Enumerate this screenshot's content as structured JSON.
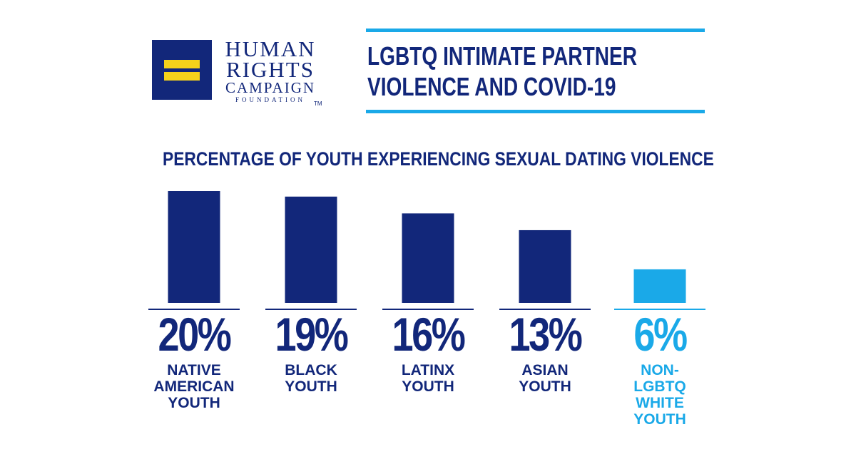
{
  "logo": {
    "line1": "HUMAN",
    "line2": "RIGHTS",
    "line3": "CAMPAIGN",
    "line4": "FOUNDATION",
    "tm": "TM"
  },
  "header": {
    "title_line1": "LGBTQ INTIMATE PARTNER",
    "title_line2": "VIOLENCE AND COVID-19"
  },
  "colors": {
    "navy": "#12277a",
    "accent": "#1aa9e8",
    "logo_yellow": "#f5d21b"
  },
  "chart_data": {
    "type": "bar",
    "title": "PERCENTAGE OF YOUTH EXPERIENCING SEXUAL DATING VIOLENCE",
    "categories": [
      "NATIVE AMERICAN YOUTH",
      "BLACK YOUTH",
      "LATINX YOUTH",
      "ASIAN YOUTH",
      "NON-LGBTQ WHITE YOUTH"
    ],
    "category_lines": [
      [
        "NATIVE",
        "AMERICAN",
        "YOUTH"
      ],
      [
        "BLACK",
        "YOUTH"
      ],
      [
        "LATINX",
        "YOUTH"
      ],
      [
        "ASIAN",
        "YOUTH"
      ],
      [
        "NON-",
        "LGBTQ",
        "WHITE",
        "YOUTH"
      ]
    ],
    "values": [
      20,
      19,
      16,
      13,
      6
    ],
    "labels": [
      "20%",
      "19%",
      "16%",
      "13%",
      "6%"
    ],
    "bar_colors": [
      "#12277a",
      "#12277a",
      "#12277a",
      "#12277a",
      "#1aa9e8"
    ],
    "ylim": [
      0,
      20
    ],
    "xlabel": "",
    "ylabel": ""
  }
}
